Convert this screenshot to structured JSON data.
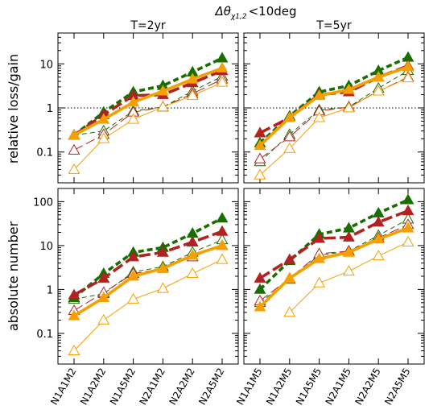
{
  "figure": {
    "supertitle": "Δθ",
    "supertitle_sub": "χ1,2",
    "supertitle_tail": "<10deg",
    "ylabel_top": "relative loss/gain",
    "ylabel_bottom": "absolute number"
  },
  "styles": {
    "colors": {
      "green": "#1a6e00",
      "red": "#b22222",
      "orange": "#f5a000"
    }
  },
  "chart_data": [
    {
      "type": "line",
      "panel": "top-left",
      "title": "T=2yr",
      "yscale": "log",
      "ylim": [
        0.02,
        50
      ],
      "yticks": [
        "0.1",
        "1",
        "10"
      ],
      "reference_line": 1,
      "categories": [
        "N1A1M2",
        "N1A2M2",
        "N1A5M2",
        "N2A1M2",
        "N2A2M2",
        "N2A5M2"
      ],
      "series": [
        {
          "color": "green",
          "style": "thick-dashed",
          "marker": "filled-triangle",
          "values": [
            0.24,
            0.8,
            2.3,
            3.2,
            6.5,
            13.5
          ]
        },
        {
          "color": "red",
          "style": "thick-longdash",
          "marker": "filled-triangle",
          "values": [
            0.24,
            0.7,
            1.9,
            2.0,
            3.7,
            7.0
          ]
        },
        {
          "color": "orange",
          "style": "thick-solid",
          "marker": "filled-triangle",
          "values": [
            0.24,
            0.55,
            1.35,
            2.4,
            4.5,
            8.0
          ]
        },
        {
          "color": "green",
          "style": "thin-dashed",
          "marker": "open-triangle",
          "values": [
            0.24,
            0.3,
            0.85,
            1.05,
            2.4,
            5.2
          ]
        },
        {
          "color": "red",
          "style": "thin-longdash",
          "marker": "open-triangle",
          "values": [
            0.11,
            0.25,
            0.8,
            1.05,
            2.1,
            4.5
          ]
        },
        {
          "color": "orange",
          "style": "thin-solid",
          "marker": "open-triangle",
          "values": [
            0.04,
            0.2,
            0.55,
            1.05,
            1.9,
            3.8
          ]
        }
      ]
    },
    {
      "type": "line",
      "panel": "top-right",
      "title": "T=5yr",
      "yscale": "log",
      "ylim": [
        0.02,
        50
      ],
      "yticks": [
        "0.1",
        "1",
        "10"
      ],
      "reference_line": 1,
      "categories": [
        "N1A1M5",
        "N1A2M5",
        "N1A5M5",
        "N2A1M5",
        "N2A2M5",
        "N2A5M5"
      ],
      "series": [
        {
          "color": "green",
          "style": "thick-dashed",
          "marker": "filled-triangle",
          "values": [
            0.16,
            0.65,
            2.3,
            3.2,
            7.0,
            14.0
          ]
        },
        {
          "color": "red",
          "style": "thick-longdash",
          "marker": "filled-triangle",
          "values": [
            0.27,
            0.6,
            2.0,
            2.3,
            5.0,
            9.0
          ]
        },
        {
          "color": "orange",
          "style": "thick-solid",
          "marker": "filled-triangle",
          "values": [
            0.14,
            0.6,
            1.9,
            2.6,
            5.0,
            8.5
          ]
        },
        {
          "color": "green",
          "style": "thin-dashed",
          "marker": "open-triangle",
          "values": [
            0.06,
            0.25,
            0.9,
            1.05,
            2.8,
            7.0
          ]
        },
        {
          "color": "red",
          "style": "thin-longdash",
          "marker": "open-triangle",
          "values": [
            0.07,
            0.22,
            0.85,
            1.05,
            2.4,
            5.0
          ]
        },
        {
          "color": "orange",
          "style": "thin-solid",
          "marker": "open-triangle",
          "values": [
            0.03,
            0.12,
            0.6,
            1.0,
            2.4,
            4.8
          ]
        }
      ]
    },
    {
      "type": "line",
      "panel": "bottom-left",
      "title": "",
      "yscale": "log",
      "ylim": [
        0.02,
        200
      ],
      "yticks": [
        "0.1",
        "1",
        "10",
        "100"
      ],
      "reference_line": null,
      "categories": [
        "N1A1M2",
        "N1A2M2",
        "N1A5M2",
        "N2A1M2",
        "N2A2M2",
        "N2A5M2"
      ],
      "series": [
        {
          "color": "green",
          "style": "thick-dashed",
          "marker": "filled-triangle",
          "values": [
            0.65,
            2.3,
            7.0,
            9.0,
            19.0,
            42.0
          ]
        },
        {
          "color": "red",
          "style": "thick-longdash",
          "marker": "filled-triangle",
          "values": [
            0.75,
            1.8,
            5.5,
            7.0,
            12.0,
            21.0
          ]
        },
        {
          "color": "orange",
          "style": "thick-solid",
          "marker": "filled-triangle",
          "values": [
            0.25,
            0.65,
            2.0,
            3.0,
            6.0,
            10.0
          ]
        },
        {
          "color": "green",
          "style": "thin-dashed",
          "marker": "open-triangle",
          "values": [
            0.6,
            0.8,
            2.5,
            3.3,
            7.0,
            13.5
          ]
        },
        {
          "color": "red",
          "style": "thin-longdash",
          "marker": "open-triangle",
          "values": [
            0.33,
            0.85,
            2.3,
            3.0,
            5.5,
            10.0
          ]
        },
        {
          "color": "orange",
          "style": "thin-solid",
          "marker": "open-triangle",
          "values": [
            0.04,
            0.2,
            0.6,
            1.05,
            2.3,
            4.8
          ]
        }
      ]
    },
    {
      "type": "line",
      "panel": "bottom-right",
      "title": "",
      "yscale": "log",
      "ylim": [
        0.02,
        200
      ],
      "yticks": [
        "0.1",
        "1",
        "10",
        "100"
      ],
      "reference_line": null,
      "categories": [
        "N1A1M5",
        "N1A2M5",
        "N1A5M5",
        "N2A1M5",
        "N2A2M5",
        "N2A5M5"
      ],
      "series": [
        {
          "color": "green",
          "style": "thick-dashed",
          "marker": "filled-triangle",
          "values": [
            1.0,
            4.5,
            18.0,
            25.0,
            55.0,
            110.0
          ]
        },
        {
          "color": "red",
          "style": "thick-longdash",
          "marker": "filled-triangle",
          "values": [
            1.8,
            4.8,
            14.5,
            15.5,
            34.0,
            62.0
          ]
        },
        {
          "color": "orange",
          "style": "thick-solid",
          "marker": "filled-triangle",
          "values": [
            0.4,
            1.8,
            5.0,
            7.0,
            14.0,
            25.0
          ]
        },
        {
          "color": "green",
          "style": "thin-dashed",
          "marker": "open-triangle",
          "values": [
            0.5,
            1.7,
            6.0,
            7.5,
            17.0,
            40.0
          ]
        },
        {
          "color": "red",
          "style": "thin-longdash",
          "marker": "open-triangle",
          "values": [
            0.55,
            1.8,
            6.5,
            7.5,
            15.0,
            30.0
          ]
        },
        {
          "color": "orange",
          "style": "thin-solid",
          "marker": "open-triangle",
          "values": [
            null,
            0.3,
            1.4,
            2.6,
            5.8,
            12.0
          ]
        }
      ]
    }
  ]
}
